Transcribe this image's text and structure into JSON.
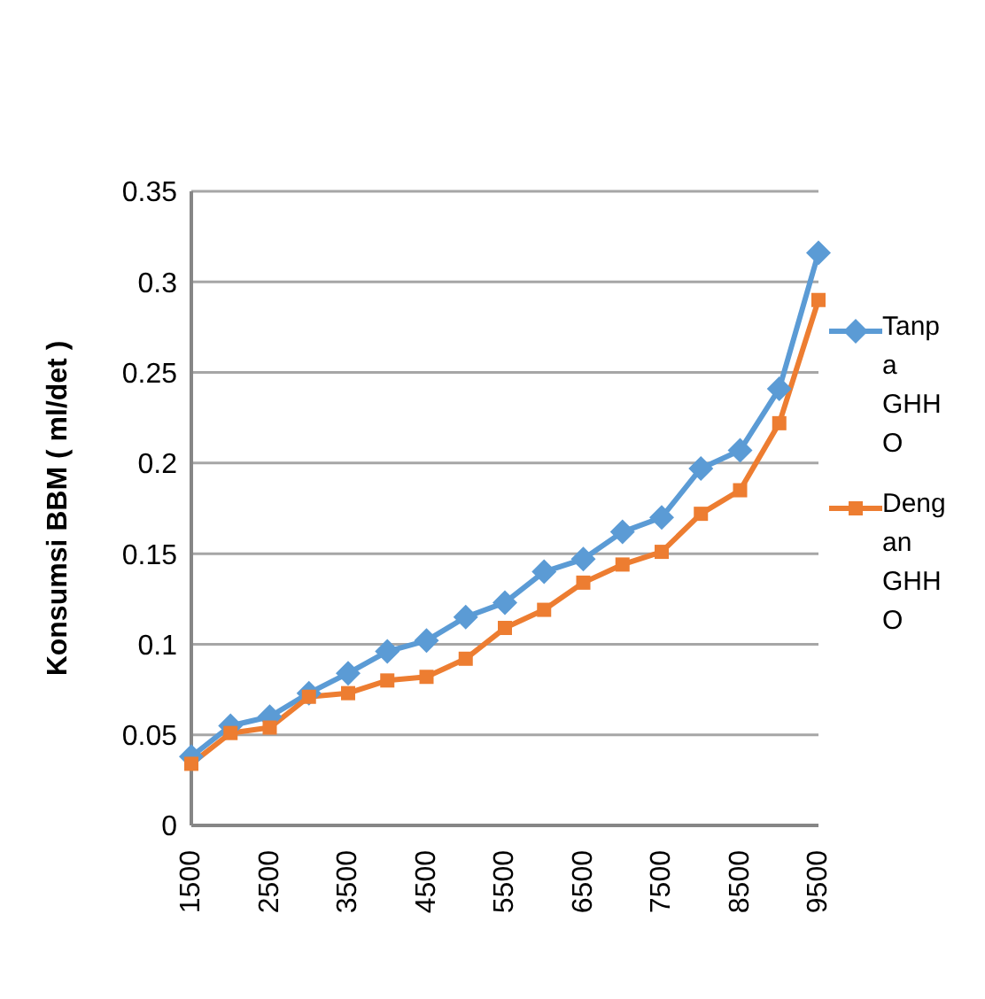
{
  "chart_data": {
    "type": "line",
    "ylabel": "Konsumsi BBM ( ml/det )",
    "categories": [
      "1500",
      null,
      "2500",
      null,
      "3500",
      null,
      "4500",
      null,
      "5500",
      null,
      "6500",
      null,
      "7500",
      null,
      "8500",
      null,
      "9500"
    ],
    "series": [
      {
        "name": "Tanpa GHHO",
        "color": "#5b9bd5",
        "marker": "diamond",
        "values": [
          0.038,
          0.055,
          0.06,
          0.073,
          0.084,
          0.096,
          0.102,
          0.115,
          0.123,
          0.14,
          0.147,
          0.162,
          0.17,
          0.197,
          0.207,
          0.241,
          0.316
        ]
      },
      {
        "name": "Dengan GHHO",
        "color": "#ed7d31",
        "marker": "square",
        "values": [
          0.034,
          0.051,
          0.054,
          0.071,
          0.073,
          0.08,
          0.082,
          0.092,
          0.109,
          0.119,
          0.134,
          0.144,
          0.151,
          0.172,
          0.185,
          0.222,
          0.29
        ]
      }
    ],
    "ylim": [
      0,
      0.35
    ],
    "yticks": [
      0,
      0.05,
      0.1,
      0.15,
      0.2,
      0.25,
      0.3,
      0.35
    ],
    "grid": "y",
    "legend": "right"
  }
}
